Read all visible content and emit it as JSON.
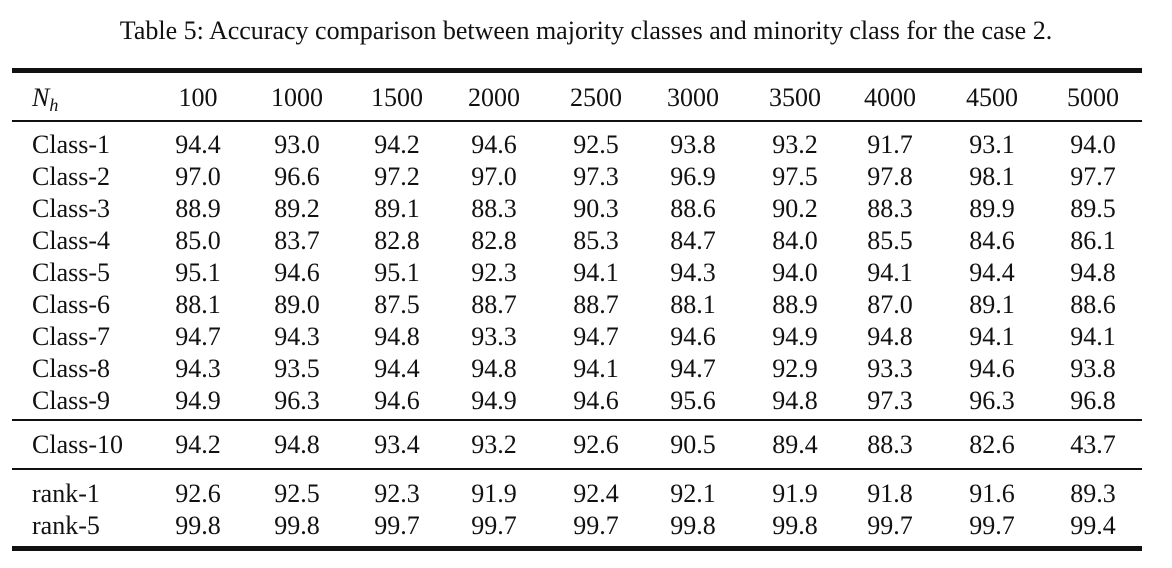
{
  "caption": "Table 5: Accuracy comparison between majority classes and minority class for the case 2.",
  "header": {
    "label_main": "N",
    "label_sub": "h",
    "columns": [
      "100",
      "1000",
      "1500",
      "2000",
      "2500",
      "3000",
      "3500",
      "4000",
      "4500",
      "5000"
    ]
  },
  "majority_rows": [
    {
      "label": "Class-1",
      "values": [
        "94.4",
        "93.0",
        "94.2",
        "94.6",
        "92.5",
        "93.8",
        "93.2",
        "91.7",
        "93.1",
        "94.0"
      ]
    },
    {
      "label": "Class-2",
      "values": [
        "97.0",
        "96.6",
        "97.2",
        "97.0",
        "97.3",
        "96.9",
        "97.5",
        "97.8",
        "98.1",
        "97.7"
      ]
    },
    {
      "label": "Class-3",
      "values": [
        "88.9",
        "89.2",
        "89.1",
        "88.3",
        "90.3",
        "88.6",
        "90.2",
        "88.3",
        "89.9",
        "89.5"
      ]
    },
    {
      "label": "Class-4",
      "values": [
        "85.0",
        "83.7",
        "82.8",
        "82.8",
        "85.3",
        "84.7",
        "84.0",
        "85.5",
        "84.6",
        "86.1"
      ]
    },
    {
      "label": "Class-5",
      "values": [
        "95.1",
        "94.6",
        "95.1",
        "92.3",
        "94.1",
        "94.3",
        "94.0",
        "94.1",
        "94.4",
        "94.8"
      ]
    },
    {
      "label": "Class-6",
      "values": [
        "88.1",
        "89.0",
        "87.5",
        "88.7",
        "88.7",
        "88.1",
        "88.9",
        "87.0",
        "89.1",
        "88.6"
      ]
    },
    {
      "label": "Class-7",
      "values": [
        "94.7",
        "94.3",
        "94.8",
        "93.3",
        "94.7",
        "94.6",
        "94.9",
        "94.8",
        "94.1",
        "94.1"
      ]
    },
    {
      "label": "Class-8",
      "values": [
        "94.3",
        "93.5",
        "94.4",
        "94.8",
        "94.1",
        "94.7",
        "92.9",
        "93.3",
        "94.6",
        "93.8"
      ]
    },
    {
      "label": "Class-9",
      "values": [
        "94.9",
        "96.3",
        "94.6",
        "94.9",
        "94.6",
        "95.6",
        "94.8",
        "97.3",
        "96.3",
        "96.8"
      ]
    }
  ],
  "minority_rows": [
    {
      "label": "Class-10",
      "values": [
        "94.2",
        "94.8",
        "93.4",
        "93.2",
        "92.6",
        "90.5",
        "89.4",
        "88.3",
        "82.6",
        "43.7"
      ]
    }
  ],
  "rank_rows": [
    {
      "label": "rank-1",
      "values": [
        "92.6",
        "92.5",
        "92.3",
        "91.9",
        "92.4",
        "92.1",
        "91.9",
        "91.8",
        "91.6",
        "89.3"
      ]
    },
    {
      "label": "rank-5",
      "values": [
        "99.8",
        "99.8",
        "99.7",
        "99.7",
        "99.7",
        "99.8",
        "99.8",
        "99.7",
        "99.7",
        "99.4"
      ]
    }
  ]
}
